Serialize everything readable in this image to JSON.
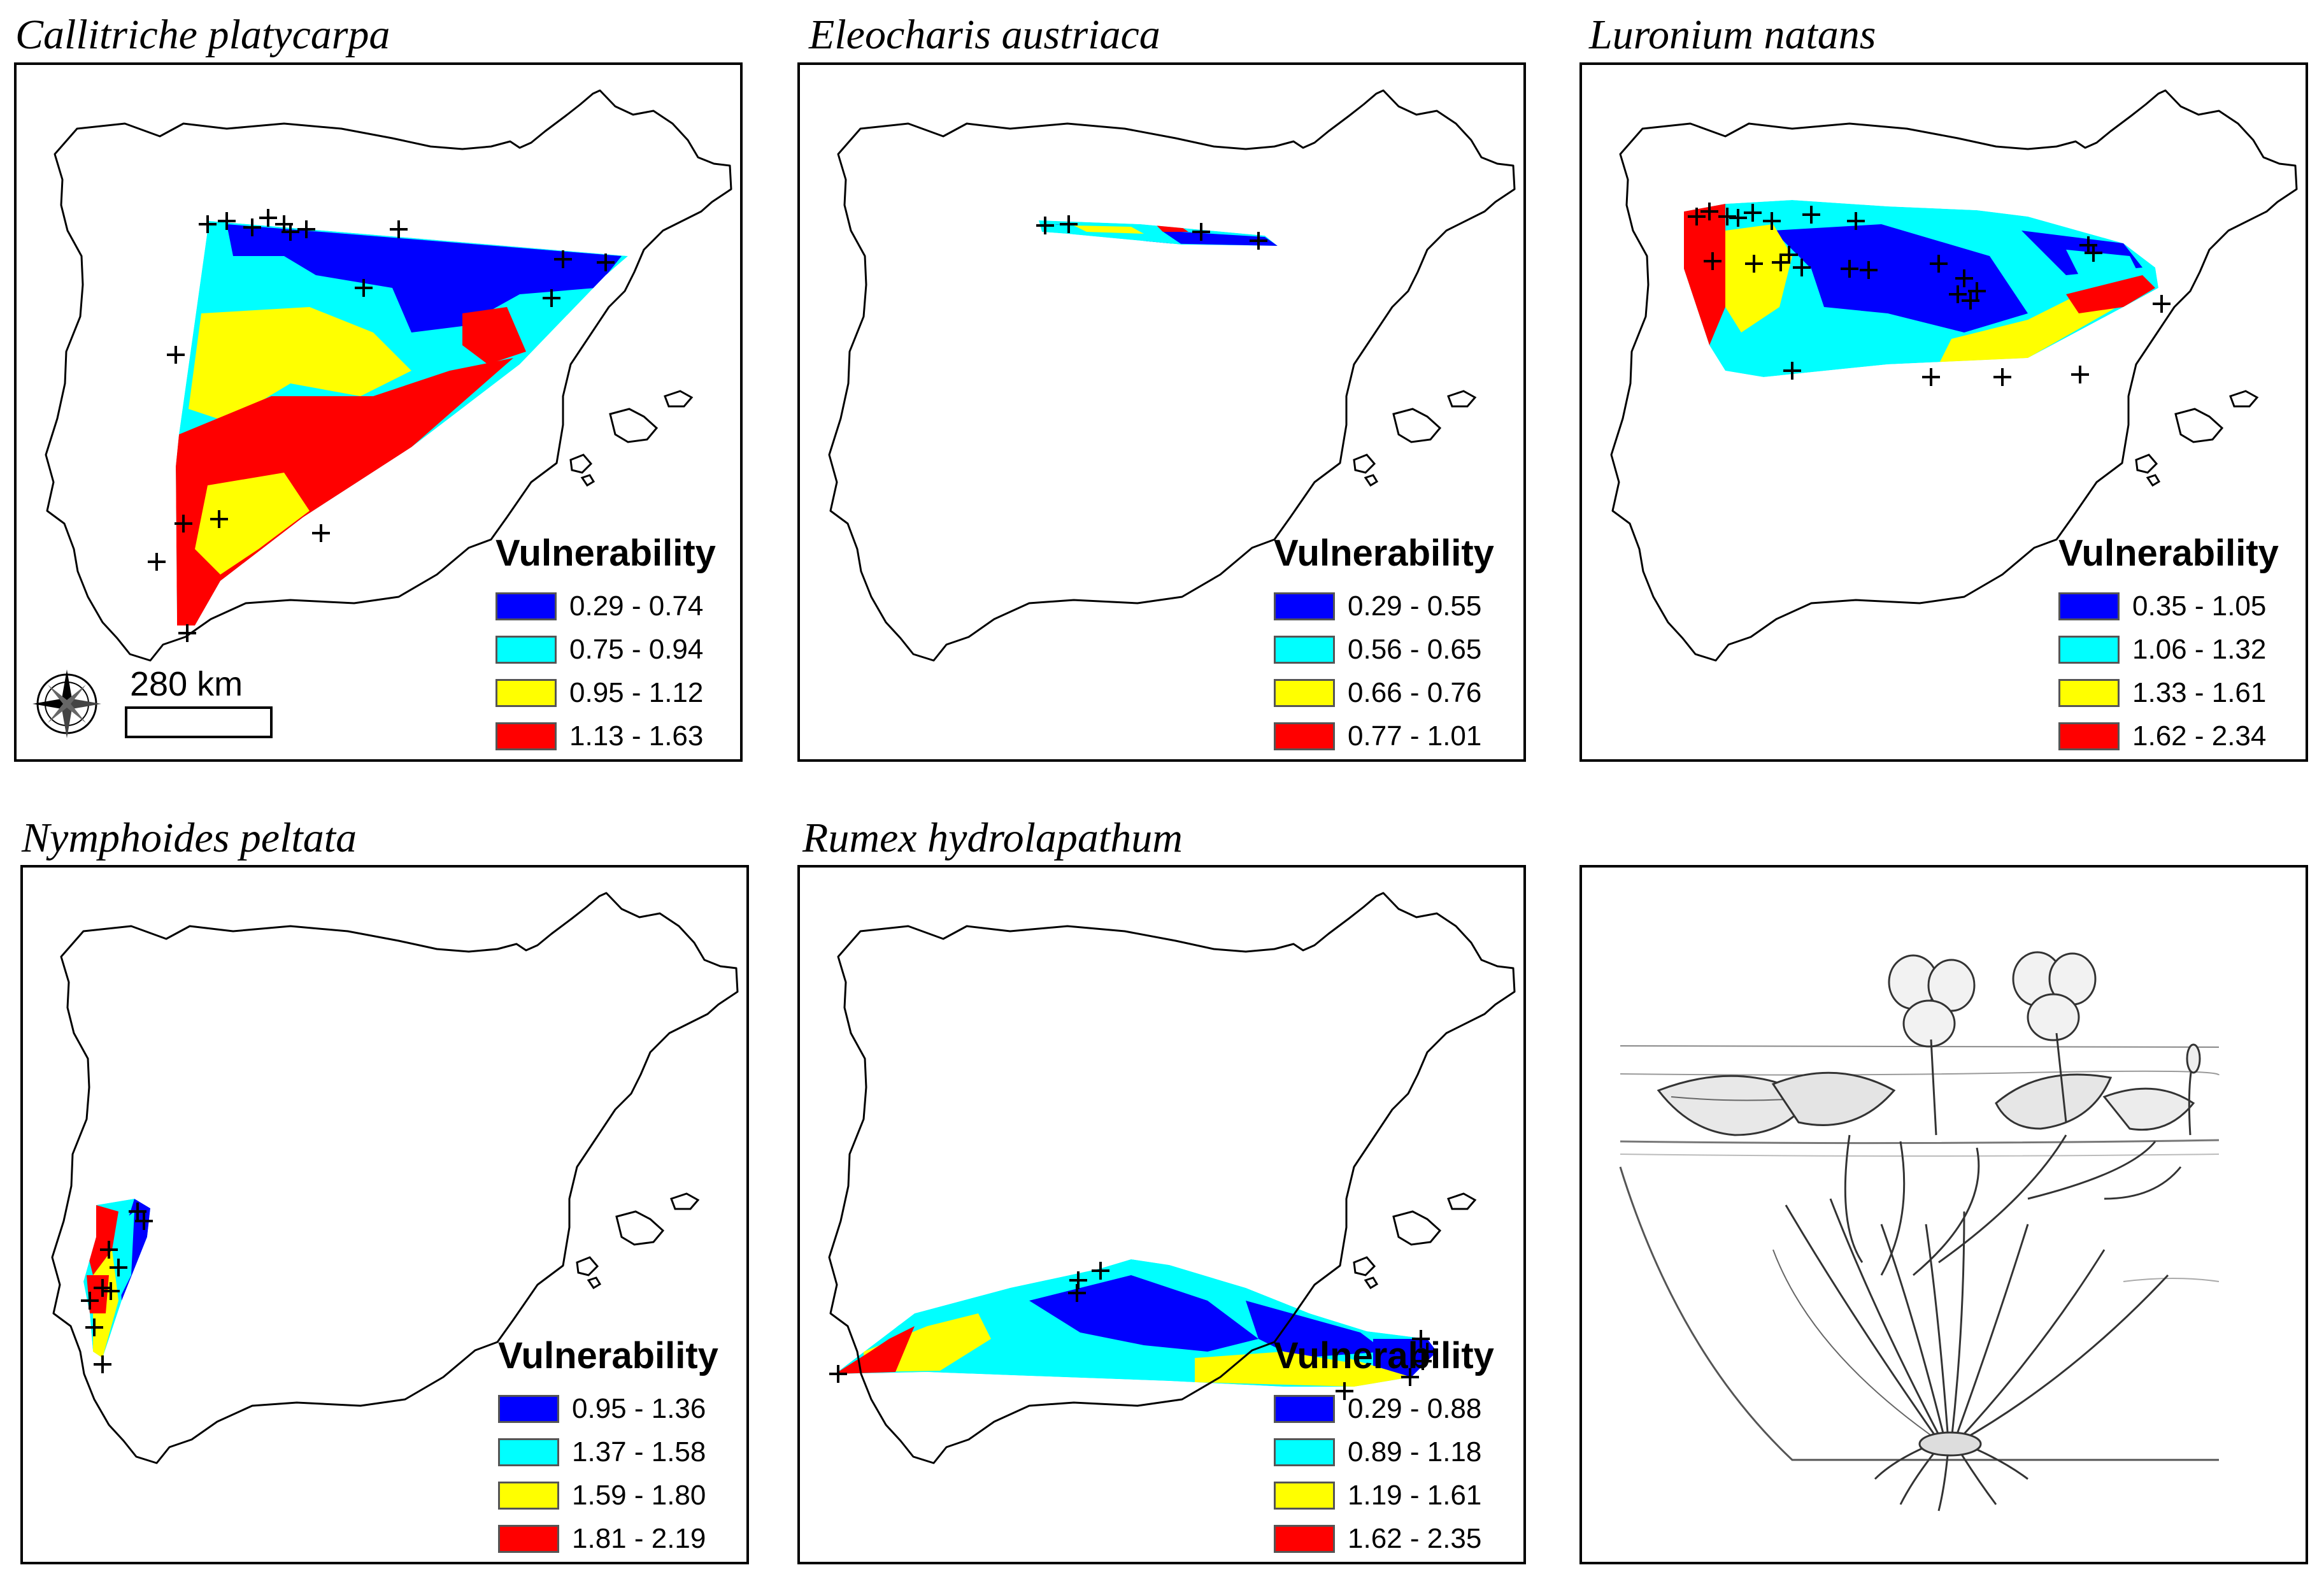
{
  "legend_title": "Vulnerability",
  "colors": {
    "class1": "#0000ff",
    "class2": "#00ffff",
    "class3": "#ffff00",
    "class4": "#ff0000",
    "outline": "#000000"
  },
  "scale_label": "280 km",
  "panels": [
    {
      "species": "Callitriche platycarpa",
      "classes": [
        "0.29 - 0.74",
        "0.75 - 0.94",
        "0.95 - 1.12",
        "1.13 - 1.63"
      ]
    },
    {
      "species": "Eleocharis austriaca",
      "classes": [
        "0.29 - 0.55",
        "0.56 - 0.65",
        "0.66 - 0.76",
        "0.77 - 1.01"
      ]
    },
    {
      "species": "Luronium natans",
      "classes": [
        "0.35 - 1.05",
        "1.06 - 1.32",
        "1.33 - 1.61",
        "1.62 - 2.34"
      ]
    },
    {
      "species": "Nymphoides peltata",
      "classes": [
        "0.95 - 1.36",
        "1.37 - 1.58",
        "1.59 - 1.80",
        "1.81 - 2.19"
      ]
    },
    {
      "species": "Rumex hydrolapathum",
      "classes": [
        "0.29 - 0.88",
        "0.89 - 1.18",
        "1.19 - 1.61",
        "1.62 - 2.35"
      ]
    }
  ],
  "illustration": {
    "subject": "aquatic-plant-drawing"
  }
}
